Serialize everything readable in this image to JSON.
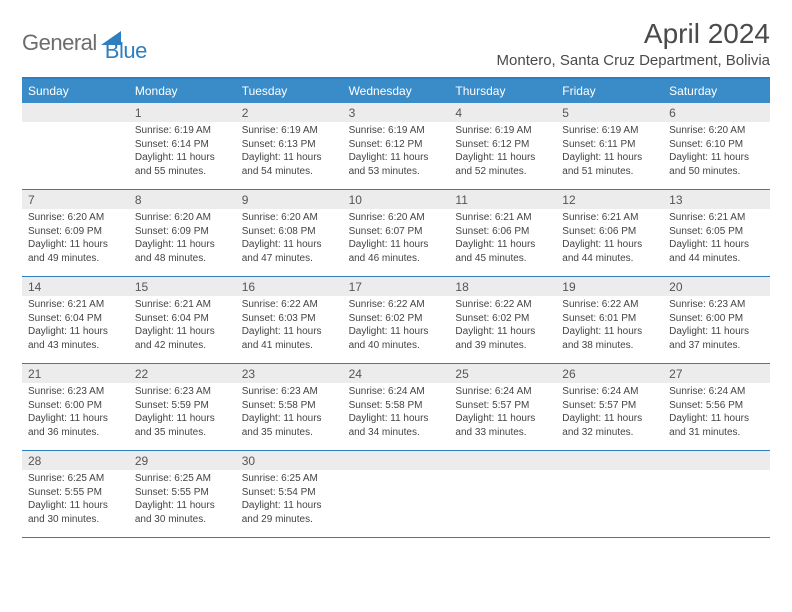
{
  "logo": {
    "general": "General",
    "blue": "Blue"
  },
  "monthTitle": "April 2024",
  "location": "Montero, Santa Cruz Department, Bolivia",
  "colors": {
    "headerBg": "#3a8cc9",
    "borderBlue": "#2f7fc0",
    "dayNumBg": "#ececec",
    "textGray": "#4a4a4a"
  },
  "dayNames": [
    "Sunday",
    "Monday",
    "Tuesday",
    "Wednesday",
    "Thursday",
    "Friday",
    "Saturday"
  ],
  "weeks": [
    [
      {
        "num": "",
        "sunrise": "",
        "sunset": "",
        "daylight1": "",
        "daylight2": ""
      },
      {
        "num": "1",
        "sunrise": "Sunrise: 6:19 AM",
        "sunset": "Sunset: 6:14 PM",
        "daylight1": "Daylight: 11 hours",
        "daylight2": "and 55 minutes."
      },
      {
        "num": "2",
        "sunrise": "Sunrise: 6:19 AM",
        "sunset": "Sunset: 6:13 PM",
        "daylight1": "Daylight: 11 hours",
        "daylight2": "and 54 minutes."
      },
      {
        "num": "3",
        "sunrise": "Sunrise: 6:19 AM",
        "sunset": "Sunset: 6:12 PM",
        "daylight1": "Daylight: 11 hours",
        "daylight2": "and 53 minutes."
      },
      {
        "num": "4",
        "sunrise": "Sunrise: 6:19 AM",
        "sunset": "Sunset: 6:12 PM",
        "daylight1": "Daylight: 11 hours",
        "daylight2": "and 52 minutes."
      },
      {
        "num": "5",
        "sunrise": "Sunrise: 6:19 AM",
        "sunset": "Sunset: 6:11 PM",
        "daylight1": "Daylight: 11 hours",
        "daylight2": "and 51 minutes."
      },
      {
        "num": "6",
        "sunrise": "Sunrise: 6:20 AM",
        "sunset": "Sunset: 6:10 PM",
        "daylight1": "Daylight: 11 hours",
        "daylight2": "and 50 minutes."
      }
    ],
    [
      {
        "num": "7",
        "sunrise": "Sunrise: 6:20 AM",
        "sunset": "Sunset: 6:09 PM",
        "daylight1": "Daylight: 11 hours",
        "daylight2": "and 49 minutes."
      },
      {
        "num": "8",
        "sunrise": "Sunrise: 6:20 AM",
        "sunset": "Sunset: 6:09 PM",
        "daylight1": "Daylight: 11 hours",
        "daylight2": "and 48 minutes."
      },
      {
        "num": "9",
        "sunrise": "Sunrise: 6:20 AM",
        "sunset": "Sunset: 6:08 PM",
        "daylight1": "Daylight: 11 hours",
        "daylight2": "and 47 minutes."
      },
      {
        "num": "10",
        "sunrise": "Sunrise: 6:20 AM",
        "sunset": "Sunset: 6:07 PM",
        "daylight1": "Daylight: 11 hours",
        "daylight2": "and 46 minutes."
      },
      {
        "num": "11",
        "sunrise": "Sunrise: 6:21 AM",
        "sunset": "Sunset: 6:06 PM",
        "daylight1": "Daylight: 11 hours",
        "daylight2": "and 45 minutes."
      },
      {
        "num": "12",
        "sunrise": "Sunrise: 6:21 AM",
        "sunset": "Sunset: 6:06 PM",
        "daylight1": "Daylight: 11 hours",
        "daylight2": "and 44 minutes."
      },
      {
        "num": "13",
        "sunrise": "Sunrise: 6:21 AM",
        "sunset": "Sunset: 6:05 PM",
        "daylight1": "Daylight: 11 hours",
        "daylight2": "and 44 minutes."
      }
    ],
    [
      {
        "num": "14",
        "sunrise": "Sunrise: 6:21 AM",
        "sunset": "Sunset: 6:04 PM",
        "daylight1": "Daylight: 11 hours",
        "daylight2": "and 43 minutes."
      },
      {
        "num": "15",
        "sunrise": "Sunrise: 6:21 AM",
        "sunset": "Sunset: 6:04 PM",
        "daylight1": "Daylight: 11 hours",
        "daylight2": "and 42 minutes."
      },
      {
        "num": "16",
        "sunrise": "Sunrise: 6:22 AM",
        "sunset": "Sunset: 6:03 PM",
        "daylight1": "Daylight: 11 hours",
        "daylight2": "and 41 minutes."
      },
      {
        "num": "17",
        "sunrise": "Sunrise: 6:22 AM",
        "sunset": "Sunset: 6:02 PM",
        "daylight1": "Daylight: 11 hours",
        "daylight2": "and 40 minutes."
      },
      {
        "num": "18",
        "sunrise": "Sunrise: 6:22 AM",
        "sunset": "Sunset: 6:02 PM",
        "daylight1": "Daylight: 11 hours",
        "daylight2": "and 39 minutes."
      },
      {
        "num": "19",
        "sunrise": "Sunrise: 6:22 AM",
        "sunset": "Sunset: 6:01 PM",
        "daylight1": "Daylight: 11 hours",
        "daylight2": "and 38 minutes."
      },
      {
        "num": "20",
        "sunrise": "Sunrise: 6:23 AM",
        "sunset": "Sunset: 6:00 PM",
        "daylight1": "Daylight: 11 hours",
        "daylight2": "and 37 minutes."
      }
    ],
    [
      {
        "num": "21",
        "sunrise": "Sunrise: 6:23 AM",
        "sunset": "Sunset: 6:00 PM",
        "daylight1": "Daylight: 11 hours",
        "daylight2": "and 36 minutes."
      },
      {
        "num": "22",
        "sunrise": "Sunrise: 6:23 AM",
        "sunset": "Sunset: 5:59 PM",
        "daylight1": "Daylight: 11 hours",
        "daylight2": "and 35 minutes."
      },
      {
        "num": "23",
        "sunrise": "Sunrise: 6:23 AM",
        "sunset": "Sunset: 5:58 PM",
        "daylight1": "Daylight: 11 hours",
        "daylight2": "and 35 minutes."
      },
      {
        "num": "24",
        "sunrise": "Sunrise: 6:24 AM",
        "sunset": "Sunset: 5:58 PM",
        "daylight1": "Daylight: 11 hours",
        "daylight2": "and 34 minutes."
      },
      {
        "num": "25",
        "sunrise": "Sunrise: 6:24 AM",
        "sunset": "Sunset: 5:57 PM",
        "daylight1": "Daylight: 11 hours",
        "daylight2": "and 33 minutes."
      },
      {
        "num": "26",
        "sunrise": "Sunrise: 6:24 AM",
        "sunset": "Sunset: 5:57 PM",
        "daylight1": "Daylight: 11 hours",
        "daylight2": "and 32 minutes."
      },
      {
        "num": "27",
        "sunrise": "Sunrise: 6:24 AM",
        "sunset": "Sunset: 5:56 PM",
        "daylight1": "Daylight: 11 hours",
        "daylight2": "and 31 minutes."
      }
    ],
    [
      {
        "num": "28",
        "sunrise": "Sunrise: 6:25 AM",
        "sunset": "Sunset: 5:55 PM",
        "daylight1": "Daylight: 11 hours",
        "daylight2": "and 30 minutes."
      },
      {
        "num": "29",
        "sunrise": "Sunrise: 6:25 AM",
        "sunset": "Sunset: 5:55 PM",
        "daylight1": "Daylight: 11 hours",
        "daylight2": "and 30 minutes."
      },
      {
        "num": "30",
        "sunrise": "Sunrise: 6:25 AM",
        "sunset": "Sunset: 5:54 PM",
        "daylight1": "Daylight: 11 hours",
        "daylight2": "and 29 minutes."
      },
      {
        "num": "",
        "sunrise": "",
        "sunset": "",
        "daylight1": "",
        "daylight2": ""
      },
      {
        "num": "",
        "sunrise": "",
        "sunset": "",
        "daylight1": "",
        "daylight2": ""
      },
      {
        "num": "",
        "sunrise": "",
        "sunset": "",
        "daylight1": "",
        "daylight2": ""
      },
      {
        "num": "",
        "sunrise": "",
        "sunset": "",
        "daylight1": "",
        "daylight2": ""
      }
    ]
  ]
}
